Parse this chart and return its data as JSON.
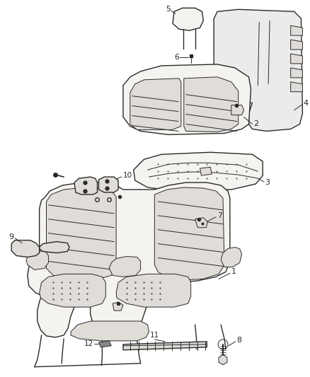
{
  "bg_color": "#ffffff",
  "line_color": "#2a2a2a",
  "fill_seat": "#f5f3f0",
  "fill_dark": "#e0ddd8",
  "fill_panel": "#ebebeb",
  "fig_width": 4.38,
  "fig_height": 5.33,
  "dpi": 100
}
